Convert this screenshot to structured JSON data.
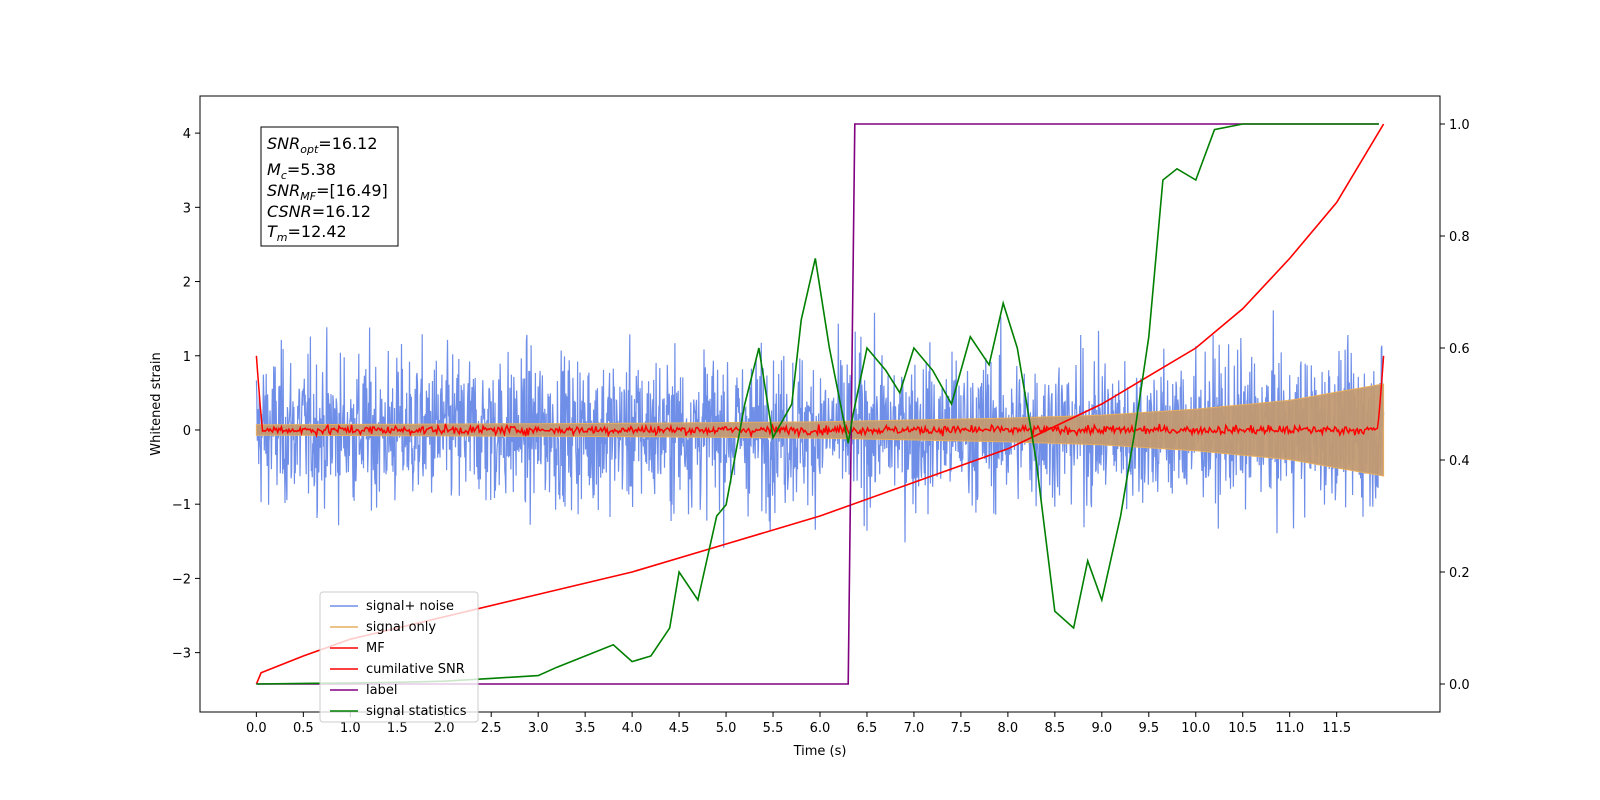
{
  "chart_data": {
    "type": "line",
    "xlabel": "Time (s)",
    "ylabel": "Whitened strain",
    "xlim": [
      -0.6,
      12.6
    ],
    "ylim": [
      -3.8,
      4.5
    ],
    "y2lim": [
      -0.05,
      1.05
    ],
    "xticks": [
      "0.0",
      "0.5",
      "1.0",
      "1.5",
      "2.0",
      "2.5",
      "3.0",
      "3.5",
      "4.0",
      "4.5",
      "5.0",
      "5.5",
      "6.0",
      "6.5",
      "7.0",
      "7.5",
      "8.0",
      "8.5",
      "9.0",
      "9.5",
      "10.0",
      "10.5",
      "11.0",
      "11.5"
    ],
    "yticks": [
      "−3",
      "−2",
      "−1",
      "0",
      "1",
      "2",
      "3",
      "4"
    ],
    "y2ticks": [
      "0.0",
      "0.2",
      "0.4",
      "0.6",
      "0.8",
      "1.0"
    ],
    "annotations": [
      {
        "sym": "SNR",
        "sub": "opt",
        "value": "=16.12"
      },
      {
        "sym": "M",
        "sub": "c",
        "value": "=5.38"
      },
      {
        "sym": "SNR",
        "sub": "MF",
        "value": "=[16.49]"
      },
      {
        "sym": "CSNR",
        "sub": "",
        "value": "=16.12"
      },
      {
        "sym": "T",
        "sub": "m",
        "value": "=12.42"
      }
    ],
    "legend_position": "lower-left",
    "colors": {
      "signal_noise": "#6f8ee8",
      "signal_only": "#e6ad5e",
      "mf": "#ff0000",
      "cumulative_snr": "#ff0000",
      "label": "#800080",
      "signal_statistics": "#008000"
    },
    "series": [
      {
        "name": "signal+ noise",
        "kind": "noise",
        "amplitude": 0.85,
        "peak_min": -3.3,
        "peak_max": 4.15
      },
      {
        "name": "signal only",
        "kind": "chirp",
        "envelope": {
          "x": [
            0,
            2,
            4,
            6,
            8,
            9,
            10,
            11,
            12
          ],
          "y": [
            0.07,
            0.08,
            0.09,
            0.11,
            0.16,
            0.2,
            0.28,
            0.4,
            0.62
          ]
        }
      },
      {
        "name": "MF",
        "kind": "mf",
        "x": [
          0.0,
          0.03,
          0.06,
          11.94,
          11.97,
          12.0
        ],
        "y": [
          1.0,
          0.5,
          0.05,
          0.05,
          0.5,
          1.0
        ],
        "jitter": 0.05
      },
      {
        "name": "cumilative SNR",
        "axis": "right",
        "x": [
          0,
          0.05,
          0.5,
          1,
          2,
          3,
          4,
          5,
          6,
          7,
          8,
          9,
          10,
          10.5,
          11,
          11.5,
          12
        ],
        "y": [
          0.0,
          0.02,
          0.05,
          0.08,
          0.12,
          0.16,
          0.2,
          0.25,
          0.3,
          0.36,
          0.42,
          0.5,
          0.6,
          0.67,
          0.76,
          0.86,
          1.0
        ]
      },
      {
        "name": "label",
        "axis": "right",
        "x": [
          0,
          6.3,
          6.37,
          11.95
        ],
        "y": [
          0.0,
          0.0,
          1.0,
          1.0
        ]
      },
      {
        "name": "signal statistics",
        "axis": "right",
        "x": [
          0,
          0.5,
          1,
          1.5,
          2,
          2.5,
          3,
          3.2,
          3.5,
          3.8,
          4.0,
          4.2,
          4.4,
          4.5,
          4.7,
          4.9,
          5.0,
          5.2,
          5.35,
          5.5,
          5.7,
          5.8,
          5.95,
          6.1,
          6.3,
          6.35,
          6.5,
          6.7,
          6.85,
          7.0,
          7.2,
          7.4,
          7.6,
          7.8,
          7.95,
          8.1,
          8.3,
          8.5,
          8.7,
          8.85,
          9.0,
          9.2,
          9.35,
          9.5,
          9.65,
          9.8,
          10.0,
          10.2,
          10.5,
          11.0,
          11.5,
          11.95
        ],
        "y": [
          0.0,
          0.001,
          0.002,
          0.003,
          0.005,
          0.01,
          0.015,
          0.03,
          0.05,
          0.07,
          0.04,
          0.05,
          0.1,
          0.2,
          0.15,
          0.3,
          0.32,
          0.5,
          0.6,
          0.44,
          0.5,
          0.65,
          0.76,
          0.6,
          0.43,
          0.48,
          0.6,
          0.56,
          0.52,
          0.6,
          0.56,
          0.5,
          0.62,
          0.57,
          0.68,
          0.6,
          0.4,
          0.13,
          0.1,
          0.22,
          0.15,
          0.3,
          0.45,
          0.62,
          0.9,
          0.92,
          0.9,
          0.99,
          1.0,
          1.0,
          1.0,
          1.0
        ]
      }
    ]
  }
}
